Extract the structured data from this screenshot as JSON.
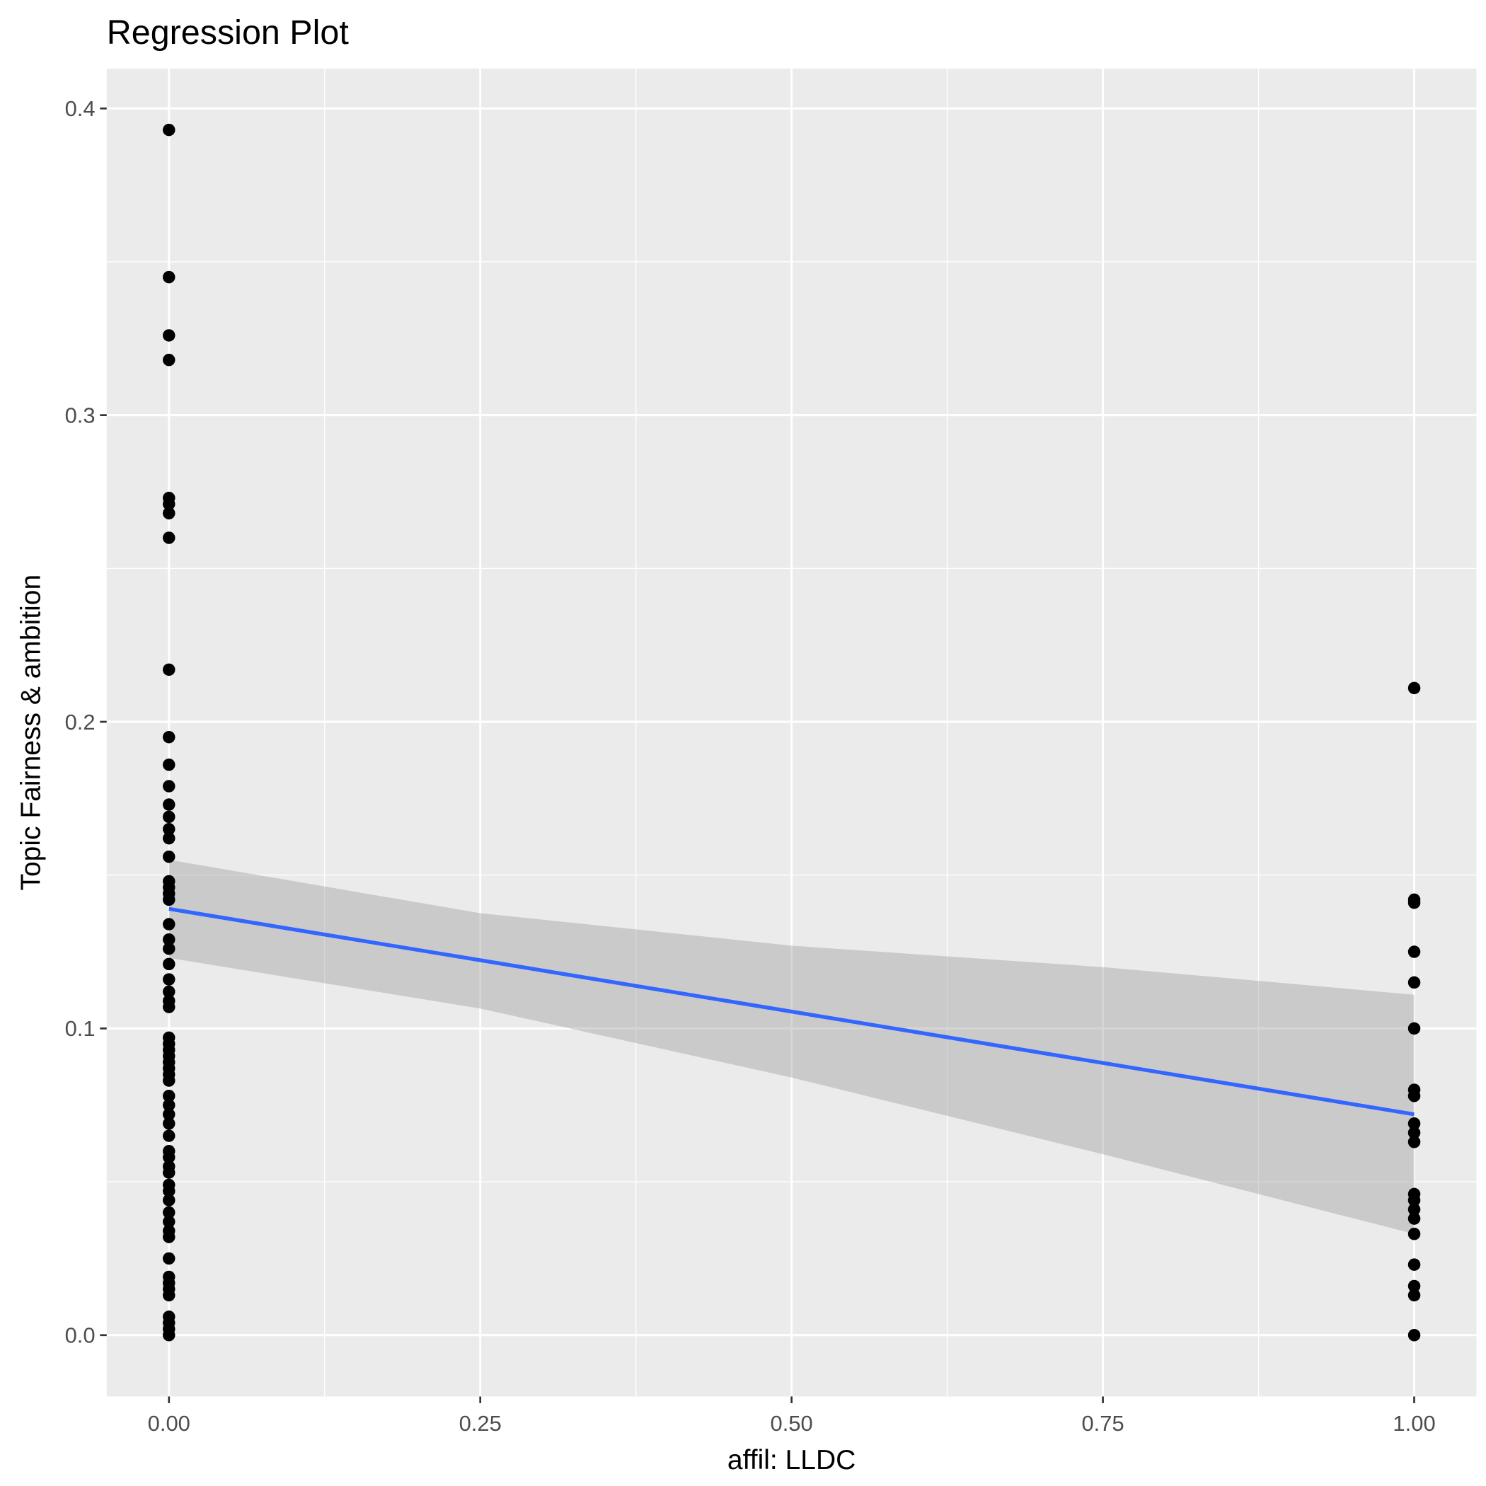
{
  "chart_data": {
    "type": "scatter",
    "title": "Regression Plot",
    "xlabel": "affil: LLDC",
    "ylabel": "Topic Fairness & ambition",
    "xlim": [
      -0.05,
      1.05
    ],
    "ylim": [
      -0.02,
      0.413
    ],
    "xticks": [
      0,
      0.25,
      0.5,
      0.75,
      1
    ],
    "xtick_labels": [
      "0.00",
      "0.25",
      "0.50",
      "0.75",
      "1.00"
    ],
    "yticks": [
      0,
      0.1,
      0.2,
      0.3,
      0.4
    ],
    "ytick_labels": [
      "0.0",
      "0.1",
      "0.2",
      "0.3",
      "0.4"
    ],
    "grid": true,
    "colors": {
      "panel": "#EBEBEB",
      "grid": "#FFFFFF",
      "points": "#000000",
      "line": "#3366FF",
      "band": "#BEBEBE"
    },
    "points": [
      {
        "x": 0,
        "y": [
          0.393,
          0.345,
          0.326,
          0.318,
          0.273,
          0.271,
          0.268,
          0.26,
          0.217,
          0.195,
          0.186,
          0.179,
          0.173,
          0.169,
          0.165,
          0.162,
          0.156,
          0.148,
          0.146,
          0.144,
          0.142,
          0.134,
          0.129,
          0.126,
          0.121,
          0.116,
          0.112,
          0.109,
          0.107,
          0.097,
          0.095,
          0.093,
          0.091,
          0.089,
          0.087,
          0.085,
          0.083,
          0.078,
          0.075,
          0.072,
          0.069,
          0.065,
          0.06,
          0.058,
          0.055,
          0.053,
          0.049,
          0.047,
          0.044,
          0.04,
          0.037,
          0.034,
          0.032,
          0.025,
          0.019,
          0.017,
          0.015,
          0.013,
          0.006,
          0.004,
          0.002,
          0.0
        ]
      },
      {
        "x": 1,
        "y": [
          0.211,
          0.142,
          0.141,
          0.125,
          0.115,
          0.1,
          0.08,
          0.078,
          0.069,
          0.066,
          0.063,
          0.046,
          0.044,
          0.041,
          0.038,
          0.033,
          0.023,
          0.016,
          0.013,
          0.0
        ]
      }
    ],
    "fit": {
      "x": [
        0,
        1
      ],
      "y": [
        0.139,
        0.072
      ]
    },
    "confidence_band": {
      "x": [
        0,
        0.25,
        0.5,
        0.75,
        1
      ],
      "lower": [
        0.123,
        0.1065,
        0.084,
        0.059,
        0.033
      ],
      "upper": [
        0.155,
        0.1376,
        0.127,
        0.12,
        0.111
      ]
    }
  }
}
